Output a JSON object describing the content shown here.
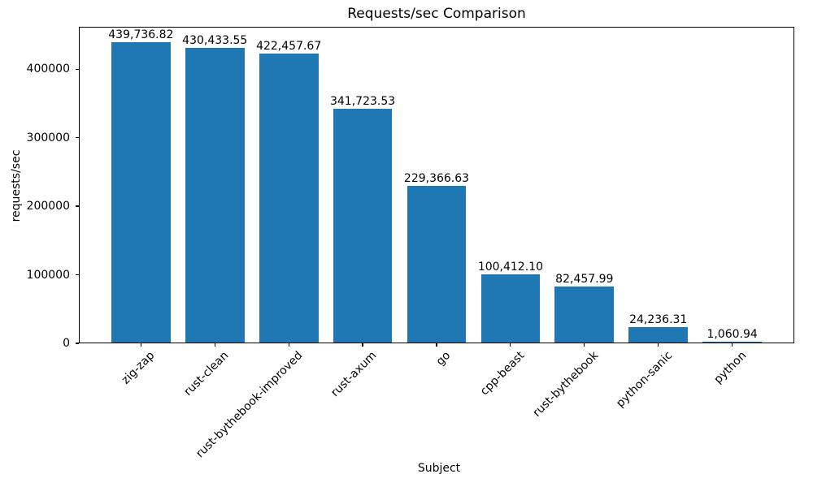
{
  "chart_data": {
    "type": "bar",
    "title": "Requests/sec Comparison",
    "xlabel": "Subject",
    "ylabel": "requests/sec",
    "categories": [
      "zig-zap",
      "rust-clean",
      "rust-bythebook-improved",
      "rust-axum",
      "go",
      "cpp-beast",
      "rust-bythebook",
      "python-sanic",
      "python"
    ],
    "values": [
      439736.82,
      430433.55,
      422457.67,
      341723.53,
      229366.63,
      100412.1,
      82457.99,
      24236.31,
      1060.94
    ],
    "bar_labels": [
      "439,736.82",
      "430,433.55",
      "422,457.67",
      "341,723.53",
      "229,366.63",
      "100,412.10",
      "82,457.99",
      "24,236.31",
      "1,060.94"
    ],
    "yticks": [
      0,
      100000,
      200000,
      300000,
      400000
    ],
    "ytick_labels": [
      "0",
      "100000",
      "200000",
      "300000",
      "400000"
    ],
    "ylim": [
      0,
      461723.66
    ],
    "bar_color": "#1f77b4",
    "axis_color": "#000000",
    "text_color": "#000000",
    "grid": false,
    "legend": null,
    "x_tick_rotation_deg": 45
  }
}
